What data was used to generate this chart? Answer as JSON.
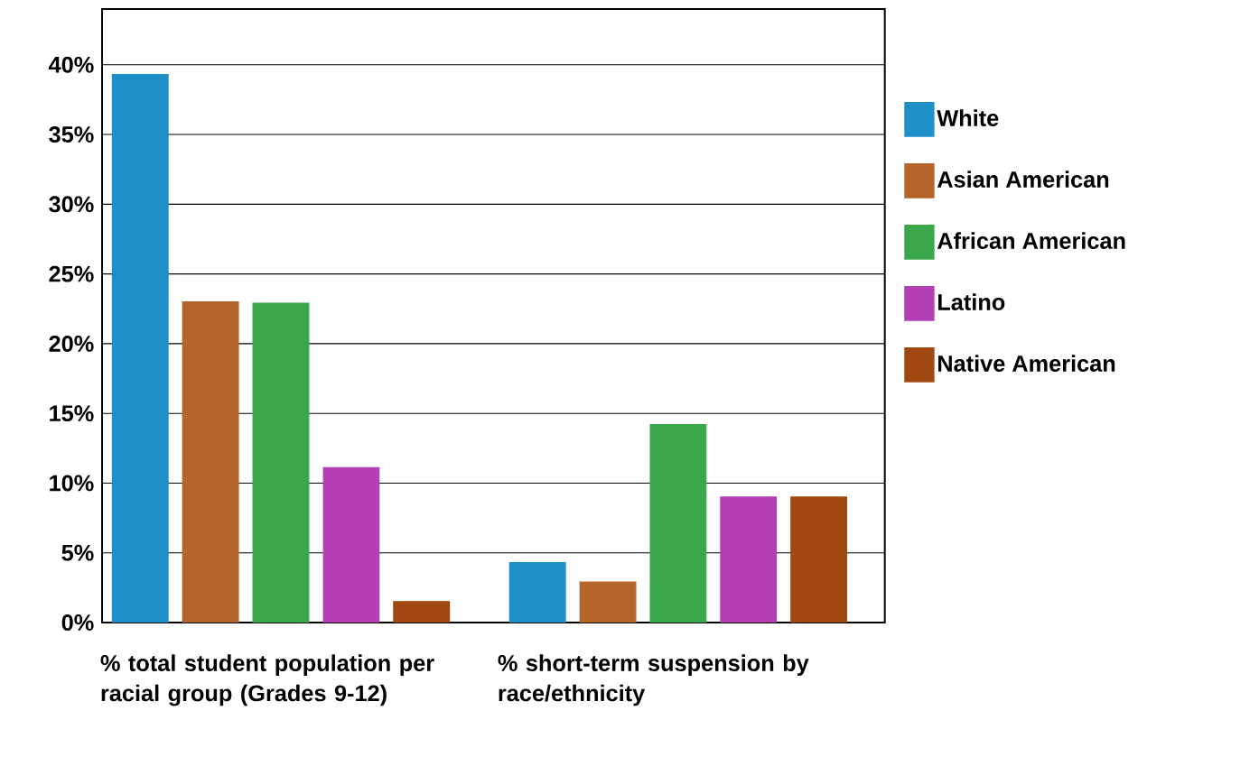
{
  "chart_data": {
    "type": "bar",
    "categories": [
      "% total student population per racial group (Grades 9-12)",
      "% short-term suspension by race/ethnicity"
    ],
    "series": [
      {
        "name": "White",
        "color": "#1f8fc8",
        "values": [
          39.3,
          4.3
        ]
      },
      {
        "name": "Asian American",
        "color": "#b5652a",
        "values": [
          23.0,
          2.9
        ]
      },
      {
        "name": "African  American",
        "color": "#3aa84a",
        "values": [
          22.9,
          14.2
        ]
      },
      {
        "name": "Latino",
        "color": "#b23fb3",
        "values": [
          11.1,
          9.0
        ]
      },
      {
        "name": "Native American",
        "color": "#a0480f",
        "values": [
          1.5,
          9.0
        ]
      }
    ],
    "ylim": [
      0,
      44
    ],
    "yticks": [
      {
        "value": 0,
        "label": "0%"
      },
      {
        "value": 5,
        "label": "5%"
      },
      {
        "value": 10,
        "label": "10%"
      },
      {
        "value": 15,
        "label": "15%"
      },
      {
        "value": 20,
        "label": "20%"
      },
      {
        "value": 25,
        "label": "25%"
      },
      {
        "value": 30,
        "label": "30%"
      },
      {
        "value": 35,
        "label": "35%"
      },
      {
        "value": 40,
        "label": "40%"
      }
    ],
    "grid": "y",
    "legend": "right"
  }
}
